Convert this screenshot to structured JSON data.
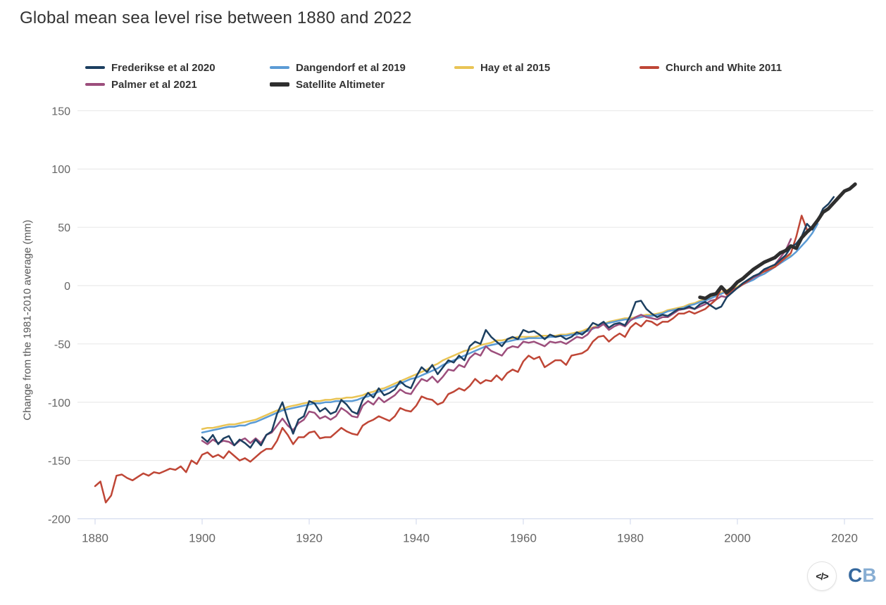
{
  "title": "Global mean sea level rise between 1880 and 2022",
  "y_axis": {
    "title": "Change from the 1981-2010 average (mm)",
    "tick_values": [
      150,
      100,
      50,
      0,
      -50,
      -100,
      -150,
      -200
    ],
    "gridline_values": [
      150,
      100,
      50,
      0,
      -50,
      -100,
      -150
    ]
  },
  "x_axis": {
    "tick_values": [
      1880,
      1900,
      1920,
      1940,
      1960,
      1980,
      2000,
      2020
    ]
  },
  "colors": {
    "title_text": "#333333",
    "axis_label_text": "#666666",
    "gridline": "#e6e6e6",
    "axis_line": "#ccd6eb",
    "legend_text": "#333333"
  },
  "footer": {
    "embed_icon": "</>",
    "logo_letter_1": "C",
    "logo_letter_2": "B",
    "logo_color_1": "#36699e",
    "logo_color_2": "#88aed3"
  },
  "chart_data": {
    "type": "line",
    "title": "Global mean sea level rise between 1880 and 2022",
    "xlabel": "",
    "ylabel": "Change from the 1981-2010 average (mm)",
    "xlim": [
      1876.7,
      2025.4
    ],
    "ylim": [
      -200,
      150
    ],
    "grid": true,
    "legend_position": "top",
    "series": [
      {
        "name": "Frederikse et al 2020",
        "color": "#1c3f60",
        "line_width": 2.5,
        "z_order": 5,
        "start_year": 1900,
        "values": [
          -130,
          -134,
          -128,
          -136,
          -131,
          -129,
          -137,
          -132,
          -135,
          -139,
          -132,
          -137,
          -128,
          -125,
          -110,
          -100,
          -115,
          -127,
          -115,
          -112,
          -99,
          -101,
          -108,
          -105,
          -110,
          -108,
          -98,
          -102,
          -108,
          -110,
          -98,
          -92,
          -96,
          -88,
          -94,
          -92,
          -89,
          -82,
          -86,
          -88,
          -78,
          -70,
          -74,
          -68,
          -76,
          -70,
          -64,
          -66,
          -60,
          -64,
          -52,
          -48,
          -50,
          -38,
          -44,
          -48,
          -52,
          -46,
          -44,
          -46,
          -38,
          -40,
          -39,
          -42,
          -46,
          -42,
          -44,
          -43,
          -46,
          -44,
          -40,
          -42,
          -38,
          -32,
          -34,
          -31,
          -36,
          -33,
          -32,
          -34,
          -26,
          -14,
          -13,
          -20,
          -24,
          -27,
          -25,
          -26,
          -23,
          -20,
          -20,
          -18,
          -20,
          -16,
          -14,
          -17,
          -20,
          -18,
          -10,
          -6,
          -2,
          2,
          5,
          8,
          10,
          14,
          16,
          18,
          22,
          26,
          33,
          36,
          42,
          53,
          48,
          56,
          66,
          70,
          76
        ]
      },
      {
        "name": "Dangendorf et al 2019",
        "color": "#5b9bd5",
        "line_width": 2.5,
        "z_order": 2,
        "start_year": 1900,
        "values": [
          -126,
          -125,
          -124,
          -123,
          -122,
          -121,
          -121,
          -120,
          -120,
          -118,
          -117,
          -115,
          -113,
          -111,
          -109,
          -107,
          -106,
          -105,
          -104,
          -103,
          -102,
          -101,
          -101,
          -100,
          -100,
          -99,
          -99,
          -99,
          -99,
          -98,
          -96,
          -95,
          -93,
          -91,
          -90,
          -88,
          -86,
          -84,
          -82,
          -80,
          -79,
          -77,
          -75,
          -73,
          -71,
          -68,
          -66,
          -64,
          -62,
          -60,
          -58,
          -56,
          -54,
          -52,
          -51,
          -50,
          -49,
          -48,
          -47,
          -46,
          -46,
          -45,
          -45,
          -45,
          -45,
          -44,
          -44,
          -43,
          -43,
          -42,
          -42,
          -40,
          -39,
          -37,
          -35,
          -33,
          -32,
          -31,
          -30,
          -29,
          -29,
          -28,
          -27,
          -26,
          -26,
          -25,
          -24,
          -22,
          -21,
          -20,
          -19,
          -17,
          -16,
          -14,
          -13,
          -11,
          -9,
          -7,
          -5,
          -3,
          -2,
          1,
          3,
          5,
          8,
          10,
          13,
          16,
          19,
          22,
          25,
          29,
          34,
          39,
          45,
          53
        ]
      },
      {
        "name": "Hay et al 2015",
        "color": "#e9c455",
        "line_width": 2.5,
        "z_order": 1,
        "start_year": 1900,
        "values": [
          -123,
          -122,
          -122,
          -121,
          -120,
          -119,
          -119,
          -118,
          -117,
          -116,
          -115,
          -113,
          -111,
          -109,
          -107,
          -106,
          -104,
          -103,
          -102,
          -101,
          -100,
          -99,
          -99,
          -98,
          -98,
          -97,
          -97,
          -96,
          -96,
          -95,
          -94,
          -92,
          -91,
          -89,
          -88,
          -86,
          -84,
          -82,
          -80,
          -78,
          -76,
          -74,
          -72,
          -69,
          -67,
          -64,
          -62,
          -60,
          -58,
          -56,
          -55,
          -53,
          -51,
          -50,
          -49,
          -47,
          -47,
          -46,
          -45,
          -44,
          -44,
          -44,
          -44,
          -43,
          -43,
          -43,
          -43,
          -42,
          -42,
          -41,
          -40,
          -39,
          -37,
          -36,
          -34,
          -33,
          -31,
          -30,
          -29,
          -28,
          -28,
          -27,
          -26,
          -25,
          -25,
          -24,
          -23,
          -21,
          -20,
          -19,
          -18,
          -16,
          -15,
          -13,
          -12,
          -10,
          -8,
          -6,
          -4,
          -2,
          -1,
          2,
          4,
          6,
          9,
          12,
          14,
          17,
          20,
          23,
          26
        ]
      },
      {
        "name": "Church and White 2011",
        "color": "#bf4636",
        "line_width": 2.5,
        "z_order": 4,
        "start_year": 1880,
        "values": [
          -172,
          -168,
          -186,
          -180,
          -163,
          -162,
          -165,
          -167,
          -164,
          -161,
          -163,
          -160,
          -161,
          -159,
          -157,
          -158,
          -155,
          -160,
          -150,
          -153,
          -145,
          -143,
          -147,
          -145,
          -148,
          -142,
          -146,
          -150,
          -148,
          -151,
          -147,
          -143,
          -140,
          -140,
          -133,
          -122,
          -128,
          -136,
          -130,
          -130,
          -126,
          -125,
          -131,
          -130,
          -130,
          -126,
          -122,
          -125,
          -127,
          -128,
          -120,
          -117,
          -115,
          -112,
          -114,
          -116,
          -112,
          -105,
          -107,
          -108,
          -103,
          -95,
          -97,
          -98,
          -102,
          -100,
          -93,
          -91,
          -88,
          -90,
          -86,
          -80,
          -84,
          -81,
          -82,
          -77,
          -81,
          -75,
          -72,
          -74,
          -65,
          -60,
          -63,
          -61,
          -70,
          -67,
          -64,
          -64,
          -68,
          -60,
          -59,
          -58,
          -55,
          -48,
          -44,
          -43,
          -48,
          -44,
          -41,
          -44,
          -36,
          -32,
          -35,
          -30,
          -31,
          -34,
          -31,
          -31,
          -28,
          -24,
          -24,
          -22,
          -24,
          -22,
          -20,
          -16,
          -12,
          -2,
          -8,
          -4,
          -2,
          1,
          4,
          8,
          10,
          12,
          14,
          16,
          20,
          24,
          28,
          42,
          60,
          48
        ]
      },
      {
        "name": "Palmer et al 2021",
        "color": "#9c4e7c",
        "line_width": 2.5,
        "z_order": 3,
        "start_year": 1900,
        "values": [
          -133,
          -136,
          -132,
          -135,
          -133,
          -134,
          -137,
          -133,
          -131,
          -135,
          -131,
          -135,
          -128,
          -126,
          -120,
          -114,
          -120,
          -124,
          -118,
          -115,
          -108,
          -109,
          -114,
          -112,
          -115,
          -112,
          -105,
          -108,
          -112,
          -113,
          -103,
          -99,
          -102,
          -96,
          -100,
          -97,
          -94,
          -89,
          -92,
          -93,
          -86,
          -80,
          -82,
          -78,
          -83,
          -78,
          -72,
          -73,
          -68,
          -70,
          -62,
          -58,
          -60,
          -52,
          -56,
          -58,
          -60,
          -54,
          -52,
          -53,
          -48,
          -49,
          -48,
          -50,
          -52,
          -48,
          -49,
          -48,
          -50,
          -47,
          -44,
          -45,
          -42,
          -36,
          -36,
          -33,
          -38,
          -35,
          -33,
          -35,
          -30,
          -27,
          -25,
          -27,
          -28,
          -29,
          -27,
          -27,
          -24,
          -21,
          -20,
          -19,
          -20,
          -18,
          -16,
          -13,
          -12,
          -9,
          -10,
          -4,
          -2,
          1,
          4,
          7,
          9,
          13,
          16,
          18,
          24,
          30,
          40
        ]
      },
      {
        "name": "Satellite Altimeter",
        "color": "#2e2e2e",
        "line_width": 5,
        "z_order": 6,
        "start_year": 1993,
        "values": [
          -10,
          -11,
          -8,
          -7,
          -1,
          -6,
          -2,
          3,
          6,
          10,
          14,
          17,
          20,
          22,
          24,
          28,
          30,
          34,
          32,
          41,
          46,
          50,
          56,
          63,
          66,
          71,
          76,
          81,
          83,
          87
        ]
      }
    ]
  }
}
